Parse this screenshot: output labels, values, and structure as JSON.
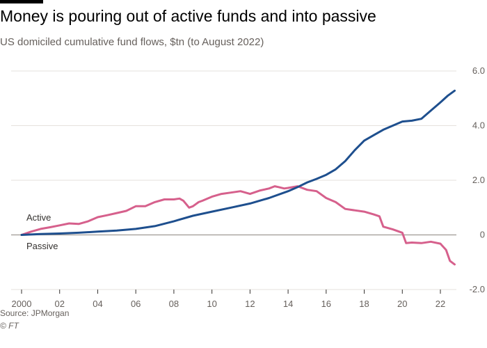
{
  "chart_data": {
    "type": "line",
    "title": "Money is pouring out of active funds and into passive",
    "subtitle": "US domiciled cumulative fund flows, $tn (to August 2022)",
    "xlabel": "",
    "ylabel": "",
    "xlim": [
      2000,
      2022.75
    ],
    "ylim": [
      -2,
      6
    ],
    "x_ticks": [
      2000,
      2002,
      2004,
      2006,
      2008,
      2010,
      2012,
      2014,
      2016,
      2018,
      2020,
      2022
    ],
    "x_tick_labels": [
      "2000",
      "02",
      "04",
      "06",
      "08",
      "10",
      "12",
      "14",
      "16",
      "18",
      "20",
      "22"
    ],
    "y_ticks": [
      -2,
      0,
      2,
      4,
      6
    ],
    "y_tick_labels": [
      "-2.0",
      "0",
      "2.0",
      "4.0",
      "6.0"
    ],
    "series": [
      {
        "name": "Active",
        "color": "#d6608c",
        "x": [
          2000.0,
          2000.5,
          2001.0,
          2001.5,
          2002.0,
          2002.5,
          2003.0,
          2003.5,
          2004.0,
          2004.5,
          2005.0,
          2005.5,
          2006.0,
          2006.5,
          2007.0,
          2007.5,
          2008.0,
          2008.3,
          2008.5,
          2008.8,
          2009.0,
          2009.3,
          2009.5,
          2010.0,
          2010.5,
          2011.0,
          2011.5,
          2012.0,
          2012.5,
          2013.0,
          2013.3,
          2013.5,
          2013.8,
          2014.0,
          2014.5,
          2015.0,
          2015.5,
          2016.0,
          2016.5,
          2017.0,
          2017.5,
          2018.0,
          2018.5,
          2018.8,
          2019.0,
          2019.5,
          2020.0,
          2020.2,
          2020.5,
          2021.0,
          2021.5,
          2022.0,
          2022.3,
          2022.5,
          2022.75
        ],
        "values": [
          0.0,
          0.12,
          0.22,
          0.28,
          0.35,
          0.42,
          0.4,
          0.5,
          0.65,
          0.72,
          0.8,
          0.88,
          1.05,
          1.05,
          1.2,
          1.3,
          1.3,
          1.33,
          1.25,
          1.0,
          1.05,
          1.2,
          1.25,
          1.4,
          1.5,
          1.55,
          1.6,
          1.5,
          1.62,
          1.7,
          1.78,
          1.75,
          1.7,
          1.72,
          1.78,
          1.65,
          1.6,
          1.35,
          1.2,
          0.95,
          0.9,
          0.85,
          0.75,
          0.68,
          0.3,
          0.2,
          0.08,
          -0.3,
          -0.28,
          -0.3,
          -0.25,
          -0.32,
          -0.55,
          -0.95,
          -1.08
        ]
      },
      {
        "name": "Passive",
        "color": "#1e4f8e",
        "x": [
          2000.0,
          2001.0,
          2002.0,
          2003.0,
          2004.0,
          2005.0,
          2006.0,
          2007.0,
          2008.0,
          2009.0,
          2010.0,
          2011.0,
          2012.0,
          2013.0,
          2014.0,
          2014.5,
          2015.0,
          2015.5,
          2016.0,
          2016.5,
          2017.0,
          2017.5,
          2018.0,
          2018.5,
          2019.0,
          2019.5,
          2020.0,
          2020.5,
          2021.0,
          2021.5,
          2022.0,
          2022.4,
          2022.75
        ],
        "values": [
          0.0,
          0.03,
          0.05,
          0.08,
          0.12,
          0.16,
          0.22,
          0.32,
          0.5,
          0.7,
          0.85,
          1.0,
          1.15,
          1.35,
          1.6,
          1.75,
          1.92,
          2.05,
          2.2,
          2.4,
          2.7,
          3.1,
          3.45,
          3.65,
          3.85,
          4.0,
          4.15,
          4.18,
          4.25,
          4.55,
          4.85,
          5.1,
          5.28
        ]
      }
    ]
  },
  "source": "Source: JPMorgan",
  "credit": "© FT"
}
